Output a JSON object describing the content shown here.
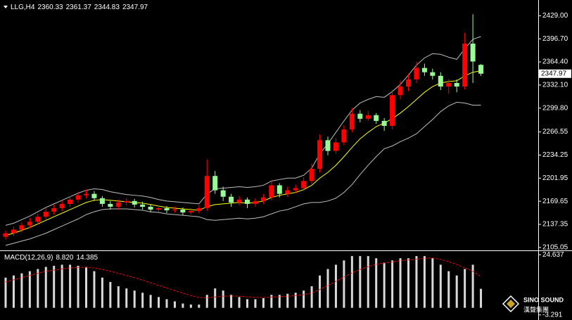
{
  "chart_data": [
    {
      "type": "candlestick",
      "title": "LLG,H4",
      "open": [
        2120,
        2125,
        2130,
        2136,
        2141,
        2148,
        2155,
        2160,
        2166,
        2172,
        2178,
        2180,
        2174,
        2166,
        2162,
        2168,
        2170,
        2165,
        2162,
        2158,
        2160,
        2157,
        2158,
        2154,
        2156,
        2160,
        2205,
        2185,
        2176,
        2168,
        2172,
        2166,
        2170,
        2175,
        2192,
        2180,
        2185,
        2188,
        2198,
        2215,
        2255,
        2240,
        2252,
        2270,
        2292,
        2285,
        2290,
        2282,
        2275,
        2318,
        2330,
        2340,
        2356,
        2350,
        2345,
        2330,
        2335,
        2330,
        2390,
        2360.33
      ],
      "high": [
        2129,
        2134,
        2140,
        2146,
        2152,
        2160,
        2165,
        2170,
        2177,
        2183,
        2186,
        2184,
        2177,
        2170,
        2172,
        2174,
        2173,
        2169,
        2166,
        2164,
        2163,
        2162,
        2161,
        2160,
        2164,
        2228,
        2212,
        2190,
        2180,
        2177,
        2175,
        2174,
        2180,
        2198,
        2195,
        2190,
        2193,
        2203,
        2222,
        2263,
        2260,
        2258,
        2276,
        2300,
        2297,
        2296,
        2293,
        2286,
        2325,
        2338,
        2348,
        2365,
        2362,
        2355,
        2350,
        2340,
        2340,
        2405,
        2431,
        2361.37
      ],
      "low": [
        2116,
        2121,
        2126,
        2132,
        2137,
        2144,
        2151,
        2156,
        2162,
        2168,
        2174,
        2170,
        2162,
        2158,
        2158,
        2164,
        2161,
        2158,
        2154,
        2155,
        2153,
        2154,
        2150,
        2151,
        2153,
        2156,
        2180,
        2170,
        2162,
        2164,
        2160,
        2162,
        2166,
        2171,
        2175,
        2176,
        2181,
        2184,
        2194,
        2210,
        2234,
        2236,
        2248,
        2266,
        2280,
        2282,
        2278,
        2268,
        2270,
        2312,
        2324,
        2335,
        2345,
        2340,
        2325,
        2320,
        2322,
        2326,
        2335,
        2344.83
      ],
      "close": [
        2125,
        2130,
        2136,
        2141,
        2148,
        2155,
        2160,
        2166,
        2172,
        2178,
        2180,
        2174,
        2166,
        2162,
        2168,
        2170,
        2165,
        2162,
        2158,
        2160,
        2157,
        2158,
        2154,
        2156,
        2160,
        2205,
        2185,
        2176,
        2168,
        2172,
        2166,
        2170,
        2175,
        2192,
        2180,
        2185,
        2188,
        2198,
        2215,
        2255,
        2240,
        2252,
        2270,
        2292,
        2285,
        2290,
        2282,
        2275,
        2318,
        2330,
        2340,
        2356,
        2350,
        2345,
        2330,
        2335,
        2330,
        2390,
        2365,
        2347.97
      ],
      "up_color": "#ff0000",
      "down_color": "#98fb98",
      "overlays": [
        {
          "color": "#ffff00",
          "values": [
            2122,
            2125,
            2129,
            2133,
            2138,
            2143,
            2148,
            2153,
            2158,
            2163,
            2168,
            2171,
            2172,
            2171,
            2170,
            2169,
            2168,
            2167,
            2165,
            2163,
            2161,
            2160,
            2159,
            2158,
            2157,
            2162,
            2165,
            2166,
            2167,
            2168,
            2167,
            2168,
            2170,
            2175,
            2178,
            2180,
            2182,
            2186,
            2192,
            2202,
            2210,
            2220,
            2232,
            2245,
            2257,
            2266,
            2274,
            2279,
            2285,
            2293,
            2302,
            2312,
            2322,
            2330,
            2335,
            2337,
            2338,
            2345,
            2350,
            2352
          ]
        },
        {
          "color": "#bdbdbd",
          "values": [
            2136,
            2139,
            2144,
            2149,
            2155,
            2161,
            2166,
            2171,
            2176,
            2181,
            2185,
            2187,
            2186,
            2183,
            2181,
            2179,
            2178,
            2177,
            2175,
            2172,
            2170,
            2169,
            2168,
            2167,
            2166,
            2180,
            2187,
            2188,
            2189,
            2190,
            2189,
            2190,
            2192,
            2198,
            2200,
            2202,
            2202,
            2206,
            2216,
            2236,
            2250,
            2266,
            2282,
            2297,
            2307,
            2312,
            2316,
            2315,
            2323,
            2333,
            2346,
            2360,
            2370,
            2376,
            2375,
            2371,
            2368,
            2383,
            2396,
            2400
          ]
        },
        {
          "color": "#bdbdbd",
          "values": [
            2108,
            2111,
            2114,
            2117,
            2121,
            2125,
            2130,
            2135,
            2140,
            2145,
            2151,
            2155,
            2158,
            2159,
            2159,
            2159,
            2158,
            2157,
            2155,
            2154,
            2152,
            2151,
            2150,
            2149,
            2148,
            2144,
            2143,
            2144,
            2145,
            2146,
            2145,
            2146,
            2148,
            2152,
            2156,
            2158,
            2162,
            2166,
            2168,
            2168,
            2170,
            2174,
            2182,
            2193,
            2207,
            2220,
            2232,
            2243,
            2247,
            2253,
            2258,
            2264,
            2274,
            2284,
            2295,
            2303,
            2308,
            2307,
            2304,
            2304
          ]
        }
      ],
      "ylim": [
        2102,
        2449
      ],
      "yticks": [
        {
          "value": 2429,
          "label": "2429.00"
        },
        {
          "value": 2396.7,
          "label": "2396.70"
        },
        {
          "value": 2364.4,
          "label": "2364.40"
        },
        {
          "value": 2332.1,
          "label": "2332.10"
        },
        {
          "value": 2299.8,
          "label": "2299.80"
        },
        {
          "value": 2266.55,
          "label": "2266.55"
        },
        {
          "value": 2234.25,
          "label": "2234.25"
        },
        {
          "value": 2201.95,
          "label": "2201.95"
        },
        {
          "value": 2169.65,
          "label": "2169.65"
        },
        {
          "value": 2137.35,
          "label": "2137.35"
        },
        {
          "value": 2105.05,
          "label": "2105.05"
        }
      ]
    },
    {
      "type": "macd",
      "title": "MACD(12,26,9)",
      "readout": [
        "8.820",
        "14.385"
      ],
      "series": [
        {
          "color": "#d9d9d9",
          "values": [
            14,
            15,
            16,
            17,
            18,
            19,
            19.5,
            20,
            20,
            19.5,
            19,
            17,
            14,
            12,
            10,
            9,
            8,
            7,
            6,
            5,
            4,
            3,
            2,
            1.5,
            1.5,
            6,
            9,
            8,
            6,
            5,
            4,
            4,
            4.5,
            6,
            6,
            6.5,
            7,
            8,
            10,
            15,
            18,
            20,
            22,
            24,
            24,
            24,
            23,
            21,
            22,
            23,
            23,
            24,
            24,
            23,
            20,
            17,
            15,
            18,
            20,
            8.82
          ]
        },
        {
          "color": "#ff0000",
          "values": [
            12,
            13,
            14,
            15,
            16,
            17,
            17.5,
            18,
            18.5,
            18.7,
            18.8,
            18.5,
            17.8,
            17,
            16,
            15,
            14,
            12.8,
            11.6,
            10.4,
            9.2,
            8,
            6.8,
            5.7,
            4.8,
            4.6,
            5,
            5.4,
            5.5,
            5.4,
            5.1,
            4.9,
            4.8,
            5,
            5.1,
            5.4,
            5.7,
            6.1,
            6.9,
            8.5,
            10.4,
            12.3,
            14.3,
            16.2,
            17.8,
            19.1,
            20.2,
            20.8,
            21.3,
            21.8,
            22.2,
            22.6,
            23,
            23.1,
            22.5,
            21.4,
            20.1,
            18.5,
            17,
            14.385
          ]
        }
      ],
      "ylim": [
        -5,
        26
      ],
      "yticks": [
        24.637,
        -3.291
      ]
    }
  ],
  "logo": {
    "text": "SINO SOUND",
    "sub": "漢聲集團"
  }
}
